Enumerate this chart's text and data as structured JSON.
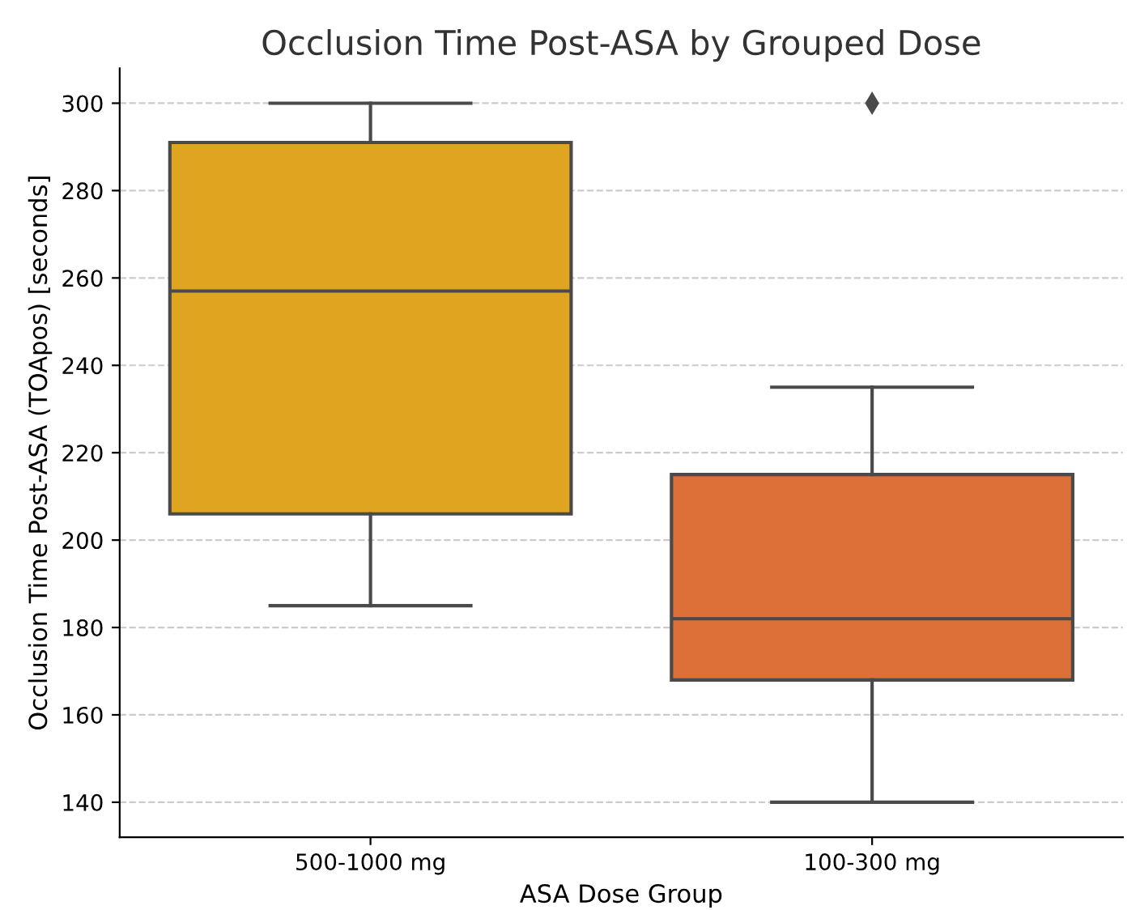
{
  "chart_data": {
    "type": "box",
    "title": "Occlusion Time Post-ASA by Grouped Dose",
    "xlabel": "ASA Dose Group",
    "ylabel": "Occlusion Time Post-ASA (TOApos) [seconds]",
    "categories": [
      "500-1000 mg",
      "100-300 mg"
    ],
    "colors": [
      "#e0a520",
      "#dc7038"
    ],
    "boxes": [
      {
        "low": 185,
        "q1": 206,
        "median": 257,
        "q3": 291,
        "high": 300
      },
      {
        "low": 140,
        "q1": 168,
        "median": 182,
        "q3": 215,
        "high": 235,
        "outliers": [
          300
        ]
      }
    ],
    "ylim": [
      132,
      308
    ],
    "yticks": [
      140,
      160,
      180,
      200,
      220,
      240,
      260,
      280,
      300
    ],
    "grid": "y"
  }
}
